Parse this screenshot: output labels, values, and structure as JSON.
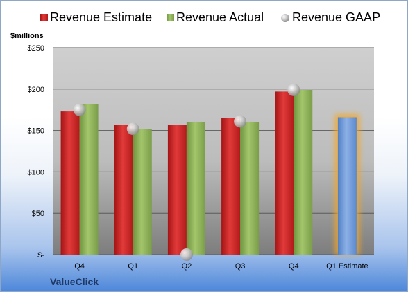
{
  "chart_data": {
    "type": "bar",
    "title": "",
    "ylabel": "$millions",
    "ylim": [
      0,
      250
    ],
    "yticks": [
      0,
      50,
      100,
      150,
      200,
      250
    ],
    "ytick_labels": [
      "$-",
      "$50",
      "$100",
      "$150",
      "$200",
      "$250"
    ],
    "categories": [
      "Q4",
      "Q1",
      "Q2",
      "Q3",
      "Q4",
      "Q1 Estimate"
    ],
    "series": [
      {
        "name": "Revenue Estimate",
        "kind": "bar",
        "color": "#d42a2a",
        "values": [
          173,
          157,
          157,
          165,
          197,
          null
        ]
      },
      {
        "name": "Revenue Actual",
        "kind": "bar",
        "color": "#8fb35a",
        "values": [
          182,
          152,
          160,
          160,
          199,
          null
        ]
      },
      {
        "name": "Revenue GAAP",
        "kind": "marker",
        "color": "#c0c0c0",
        "values": [
          175,
          152,
          0,
          161,
          199,
          null
        ]
      }
    ],
    "forecast": {
      "category": "Q1 Estimate",
      "value": 166,
      "color": "#6f9bd8",
      "glow": "#f5a623"
    },
    "legend_position": "top",
    "grid": true
  },
  "footer": {
    "company": "ValueClick"
  }
}
